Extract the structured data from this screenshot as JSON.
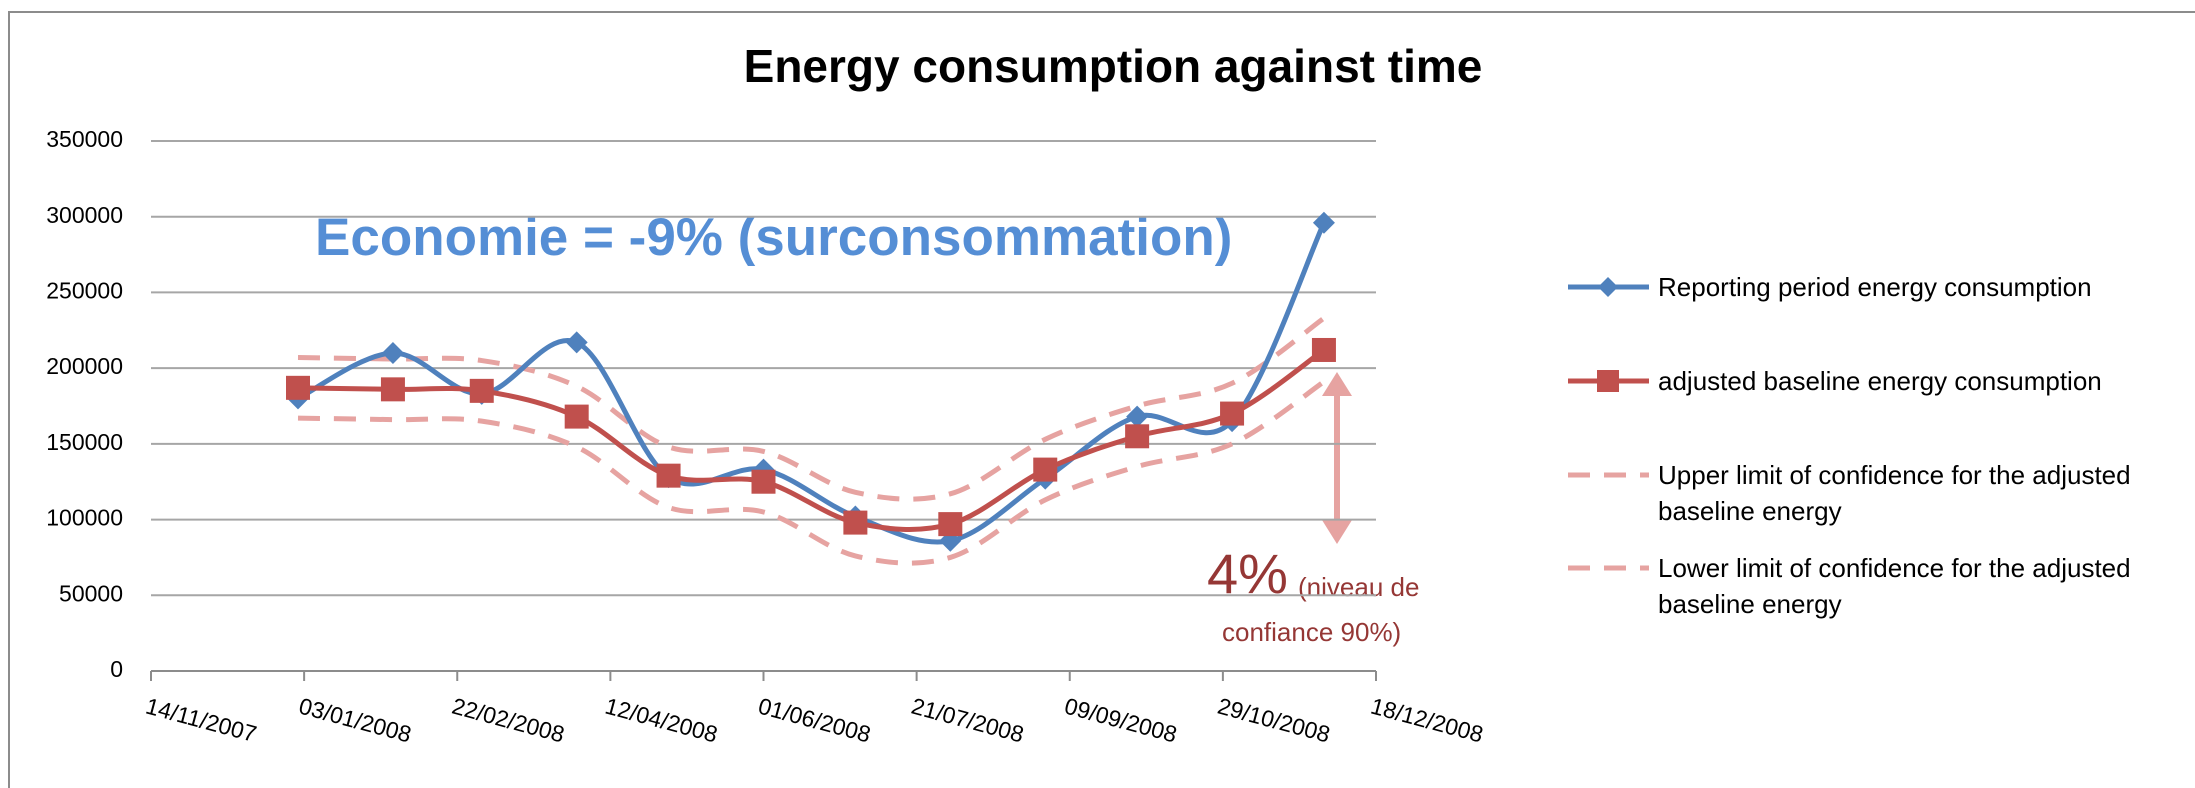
{
  "chart_data": {
    "type": "line",
    "title": "Energy consumption against time",
    "annotations": [
      "Economie = -9% (surconsommation)",
      "4%",
      "(niveau de",
      "confiance 90%)"
    ],
    "x": [
      "01/01/2008",
      "01/02/2008",
      "01/03/2008",
      "01/04/2008",
      "01/05/2008",
      "01/06/2008",
      "01/07/2008",
      "01/08/2008",
      "01/09/2008",
      "01/10/2008",
      "01/11/2008",
      "01/12/2008"
    ],
    "series": [
      {
        "name": "Reporting period energy consumption",
        "color": "#4f81bd",
        "marker": "diamond",
        "dash": false,
        "values": [
          180000,
          210000,
          183000,
          217000,
          128000,
          133000,
          102000,
          86000,
          127000,
          168000,
          165000,
          296000
        ]
      },
      {
        "name": "adjusted baseline energy consumption",
        "color": "#c0504d",
        "marker": "square",
        "dash": false,
        "values": [
          187000,
          186000,
          185000,
          168000,
          129000,
          125000,
          98000,
          97000,
          133000,
          155000,
          170000,
          212000
        ]
      },
      {
        "name": "Upper limit of confidence for the adjusted baseline energy",
        "color": "#e6a3a1",
        "marker": "none",
        "dash": true,
        "values": [
          207000,
          206000,
          205000,
          188000,
          148000,
          145000,
          118000,
          117000,
          153000,
          175000,
          190000,
          233000
        ]
      },
      {
        "name": "Lower limit of confidence for the adjusted baseline energy",
        "color": "#e6a3a1",
        "marker": "none",
        "dash": true,
        "values": [
          167000,
          166000,
          165000,
          148000,
          108000,
          105000,
          76000,
          75000,
          113000,
          135000,
          150000,
          191000
        ]
      }
    ],
    "xlim": [
      "14/11/2007",
      "18/12/2008"
    ],
    "xticks": [
      "14/11/2007",
      "03/01/2008",
      "22/02/2008",
      "12/04/2008",
      "01/06/2008",
      "21/07/2008",
      "09/09/2008",
      "29/10/2008",
      "18/12/2008"
    ],
    "ylim": [
      0,
      350000
    ],
    "yticks": [
      0,
      50000,
      100000,
      150000,
      200000,
      250000,
      300000,
      350000
    ],
    "grid": true,
    "smooth": true,
    "legend": "right"
  }
}
